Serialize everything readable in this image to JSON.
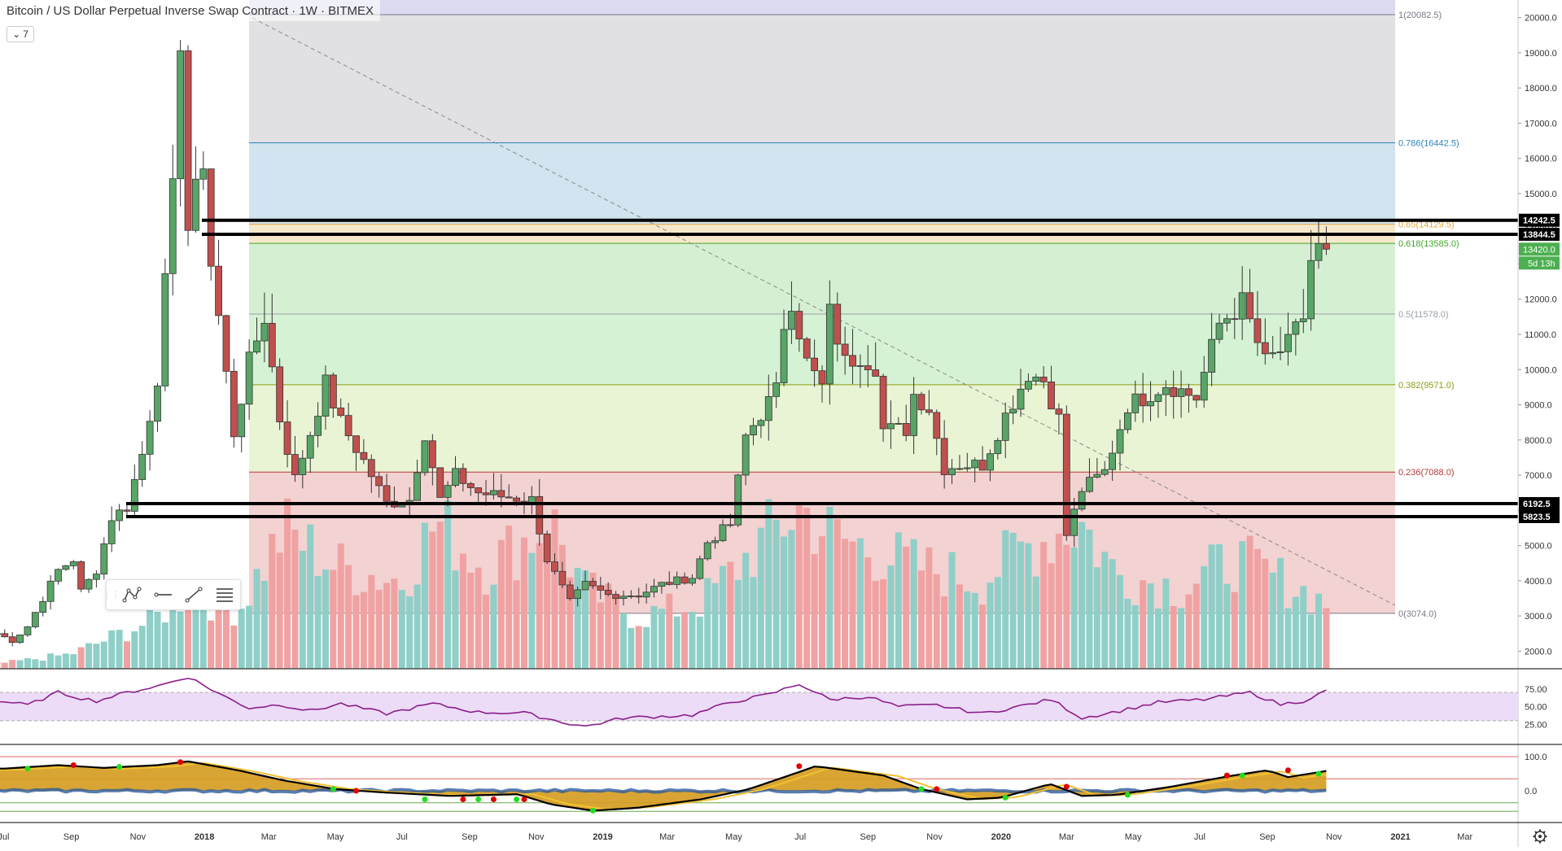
{
  "header": {
    "title": "Bitcoin / US Dollar Perpetual Inverse Swap Contract · 1W · BITMEX",
    "indicator_count": "7"
  },
  "chart_data": {
    "type": "candlestick",
    "title": "Bitcoin / US Dollar Perpetual Inverse Swap Contract · 1W · BITMEX",
    "symbol": "XBTUSD",
    "timeframe": "1W",
    "exchange": "BITMEX",
    "y_range": [
      1500,
      20500
    ],
    "y_ticks": [
      "20000.0",
      "19000.0",
      "18000.0",
      "17000.0",
      "16000.0",
      "15000.0",
      "14000.0",
      "13000.0",
      "12000.0",
      "11000.0",
      "10000.0",
      "9000.0",
      "8000.0",
      "7000.0",
      "6000.0",
      "5000.0",
      "4000.0",
      "3000.0",
      "2000.0"
    ],
    "x_ticks": [
      "Jul",
      "Sep",
      "Nov",
      "2018",
      "Mar",
      "May",
      "Jul",
      "Sep",
      "Nov",
      "2019",
      "Mar",
      "May",
      "Jul",
      "Sep",
      "Nov",
      "2020",
      "Mar",
      "May",
      "Jul",
      "Sep",
      "Nov",
      "2021",
      "Mar"
    ],
    "price_path": [
      [
        "2017-07-02",
        2500
      ],
      [
        "2017-07-16",
        2300
      ],
      [
        "2017-07-30",
        2700
      ],
      [
        "2017-08-13",
        3500
      ],
      [
        "2017-08-27",
        4300
      ],
      [
        "2017-09-10",
        4600
      ],
      [
        "2017-09-17",
        3700
      ],
      [
        "2017-10-01",
        4300
      ],
      [
        "2017-10-15",
        5800
      ],
      [
        "2017-10-29",
        6100
      ],
      [
        "2017-11-12",
        7600
      ],
      [
        "2017-11-26",
        9800
      ],
      [
        "2017-12-10",
        15000
      ],
      [
        "2017-12-17",
        19500
      ],
      [
        "2017-12-24",
        14000
      ],
      [
        "2018-01-07",
        16000
      ],
      [
        "2018-01-14",
        13000
      ],
      [
        "2018-01-21",
        11500
      ],
      [
        "2018-02-04",
        8200
      ],
      [
        "2018-02-18",
        10200
      ],
      [
        "2018-03-04",
        11500
      ],
      [
        "2018-03-18",
        8600
      ],
      [
        "2018-04-01",
        6900
      ],
      [
        "2018-04-15",
        8200
      ],
      [
        "2018-04-29",
        9600
      ],
      [
        "2018-05-13",
        8500
      ],
      [
        "2018-06-03",
        7400
      ],
      [
        "2018-06-24",
        6200
      ],
      [
        "2018-07-15",
        6300
      ],
      [
        "2018-07-29",
        8200
      ],
      [
        "2018-08-12",
        6300
      ],
      [
        "2018-08-26",
        7000
      ],
      [
        "2018-09-16",
        6500
      ],
      [
        "2018-10-07",
        6400
      ],
      [
        "2018-11-04",
        6300
      ],
      [
        "2018-11-18",
        4600
      ],
      [
        "2018-12-09",
        3400
      ],
      [
        "2018-12-23",
        3900
      ],
      [
        "2019-01-13",
        3600
      ],
      [
        "2019-02-10",
        3600
      ],
      [
        "2019-03-03",
        3900
      ],
      [
        "2019-03-31",
        4100
      ],
      [
        "2019-04-14",
        5100
      ],
      [
        "2019-05-05",
        5600
      ],
      [
        "2019-05-19",
        8100
      ],
      [
        "2019-06-16",
        9400
      ],
      [
        "2019-06-23",
        11300
      ],
      [
        "2019-06-30",
        12000
      ],
      [
        "2019-07-14",
        10200
      ],
      [
        "2019-07-28",
        9500
      ],
      [
        "2019-08-04",
        11600
      ],
      [
        "2019-08-18",
        10200
      ],
      [
        "2019-09-01",
        10400
      ],
      [
        "2019-09-15",
        10100
      ],
      [
        "2019-09-22",
        8300
      ],
      [
        "2019-10-13",
        8300
      ],
      [
        "2019-10-20",
        9300
      ],
      [
        "2019-11-03",
        8900
      ],
      [
        "2019-11-17",
        7200
      ],
      [
        "2019-12-01",
        7300
      ],
      [
        "2019-12-22",
        7300
      ],
      [
        "2020-01-12",
        8700
      ],
      [
        "2020-02-02",
        9900
      ],
      [
        "2020-02-16",
        9700
      ],
      [
        "2020-03-01",
        8600
      ],
      [
        "2020-03-08",
        5300
      ],
      [
        "2020-03-22",
        6600
      ],
      [
        "2020-04-12",
        7100
      ],
      [
        "2020-05-03",
        9000
      ],
      [
        "2020-05-17",
        9200
      ],
      [
        "2020-06-07",
        9600
      ],
      [
        "2020-07-05",
        9200
      ],
      [
        "2020-07-26",
        11300
      ],
      [
        "2020-08-16",
        11900
      ],
      [
        "2020-09-06",
        10200
      ],
      [
        "2020-09-27",
        10700
      ],
      [
        "2020-10-11",
        11500
      ],
      [
        "2020-10-18",
        13100
      ],
      [
        "2020-10-25",
        13420
      ]
    ],
    "volume_path": [
      [
        "2017-07-02",
        0.04
      ],
      [
        "2017-09-01",
        0.1
      ],
      [
        "2017-11-15",
        0.33
      ],
      [
        "2017-12-15",
        0.52
      ],
      [
        "2018-02-01",
        0.4
      ],
      [
        "2018-03-15",
        0.95
      ],
      [
        "2018-05-01",
        0.7
      ],
      [
        "2018-07-01",
        0.6
      ],
      [
        "2018-08-01",
        1.0
      ],
      [
        "2018-09-15",
        0.7
      ],
      [
        "2018-11-15",
        1.0
      ],
      [
        "2018-12-15",
        0.55
      ],
      [
        "2019-02-01",
        0.35
      ],
      [
        "2019-04-01",
        0.45
      ],
      [
        "2019-06-01",
        0.9
      ],
      [
        "2019-06-30",
        1.1
      ],
      [
        "2019-08-01",
        0.9
      ],
      [
        "2019-10-15",
        0.7
      ],
      [
        "2019-12-15",
        0.6
      ],
      [
        "2020-01-15",
        0.8
      ],
      [
        "2020-03-14",
        1.0
      ],
      [
        "2020-04-15",
        0.65
      ],
      [
        "2020-06-15",
        0.55
      ],
      [
        "2020-08-01",
        0.75
      ],
      [
        "2020-09-15",
        0.6
      ],
      [
        "2020-10-25",
        0.45
      ]
    ],
    "rsi_path": [
      [
        "2017-07-02",
        57
      ],
      [
        "2017-07-23",
        52
      ],
      [
        "2017-08-20",
        70
      ],
      [
        "2017-09-10",
        62
      ],
      [
        "2017-09-24",
        58
      ],
      [
        "2017-10-22",
        70
      ],
      [
        "2017-11-19",
        79
      ],
      [
        "2017-12-17",
        92
      ],
      [
        "2018-01-21",
        63
      ],
      [
        "2018-02-11",
        48
      ],
      [
        "2018-03-11",
        53
      ],
      [
        "2018-04-08",
        44
      ],
      [
        "2018-05-06",
        54
      ],
      [
        "2018-06-17",
        40
      ],
      [
        "2018-07-29",
        54
      ],
      [
        "2018-09-09",
        42
      ],
      [
        "2018-10-21",
        41
      ],
      [
        "2018-11-25",
        28
      ],
      [
        "2018-12-16",
        22
      ],
      [
        "2019-01-20",
        34
      ],
      [
        "2019-03-24",
        38
      ],
      [
        "2019-04-28",
        56
      ],
      [
        "2019-06-02",
        67
      ],
      [
        "2019-06-30",
        82
      ],
      [
        "2019-07-28",
        60
      ],
      [
        "2019-09-01",
        64
      ],
      [
        "2019-09-29",
        50
      ],
      [
        "2019-11-03",
        52
      ],
      [
        "2019-12-15",
        40
      ],
      [
        "2020-01-26",
        53
      ],
      [
        "2020-02-16",
        60
      ],
      [
        "2020-03-15",
        34
      ],
      [
        "2020-04-19",
        44
      ],
      [
        "2020-05-24",
        56
      ],
      [
        "2020-07-05",
        60
      ],
      [
        "2020-08-16",
        70
      ],
      [
        "2020-09-13",
        53
      ],
      [
        "2020-10-04",
        58
      ],
      [
        "2020-10-25",
        72
      ]
    ],
    "rsi_levels": [
      70,
      30
    ],
    "rsi_ticks": [
      "75.00",
      "50.00",
      "25.00"
    ],
    "osc_path": [
      [
        "2017-07-02",
        65
      ],
      [
        "2017-08-20",
        75
      ],
      [
        "2017-10-01",
        67
      ],
      [
        "2017-11-19",
        75
      ],
      [
        "2017-12-17",
        86
      ],
      [
        "2018-02-01",
        60
      ],
      [
        "2018-03-15",
        30
      ],
      [
        "2018-05-01",
        5
      ],
      [
        "2018-06-15",
        -5
      ],
      [
        "2018-08-15",
        -15
      ],
      [
        "2018-10-15",
        -10
      ],
      [
        "2018-11-15",
        -40
      ],
      [
        "2018-12-23",
        -58
      ],
      [
        "2019-02-01",
        -50
      ],
      [
        "2019-04-01",
        -25
      ],
      [
        "2019-05-15",
        5
      ],
      [
        "2019-06-30",
        55
      ],
      [
        "2019-07-15",
        72
      ],
      [
        "2019-09-15",
        45
      ],
      [
        "2019-10-20",
        5
      ],
      [
        "2019-12-01",
        -25
      ],
      [
        "2020-01-01",
        -20
      ],
      [
        "2020-02-15",
        20
      ],
      [
        "2020-03-15",
        -15
      ],
      [
        "2020-04-15",
        -12
      ],
      [
        "2020-06-01",
        10
      ],
      [
        "2020-08-01",
        45
      ],
      [
        "2020-09-01",
        60
      ],
      [
        "2020-09-20",
        40
      ],
      [
        "2020-10-25",
        58
      ]
    ],
    "osc_ticks": [
      "100.0",
      "0.0"
    ],
    "osc_markers": [
      [
        "2017-07-23",
        "green",
        65
      ],
      [
        "2017-09-03",
        "red",
        75
      ],
      [
        "2017-10-15",
        "green",
        70
      ],
      [
        "2017-12-10",
        "red",
        84
      ],
      [
        "2018-04-29",
        "green",
        5
      ],
      [
        "2018-05-20",
        "red",
        0
      ],
      [
        "2018-07-22",
        "green",
        -25
      ],
      [
        "2018-08-26",
        "red",
        -25
      ],
      [
        "2018-09-09",
        "green",
        -25
      ],
      [
        "2018-09-23",
        "red",
        -25
      ],
      [
        "2018-10-14",
        "green",
        -25
      ],
      [
        "2018-10-21",
        "red",
        -25
      ],
      [
        "2018-12-23",
        "green",
        -58
      ],
      [
        "2019-06-30",
        "red",
        72
      ],
      [
        "2019-10-20",
        "green",
        5
      ],
      [
        "2019-11-03",
        "red",
        5
      ],
      [
        "2020-01-05",
        "green",
        -20
      ],
      [
        "2020-03-01",
        "red",
        12
      ],
      [
        "2020-04-26",
        "green",
        -12
      ],
      [
        "2020-07-26",
        "red",
        45
      ],
      [
        "2020-08-09",
        "green",
        45
      ],
      [
        "2020-09-20",
        "red",
        60
      ],
      [
        "2020-10-18",
        "green",
        50
      ]
    ],
    "fib_levels": [
      {
        "ratio": "1",
        "price": 20082.5,
        "label": "1(20082.5)",
        "color": "#787b86",
        "fill": "#e1e1e4"
      },
      {
        "ratio": "0.786",
        "price": 16442.5,
        "label": "0.786(16442.5)",
        "color": "#2e84b8",
        "fill": "#d1e4ef"
      },
      {
        "ratio": "0.65",
        "price": 14129.5,
        "label": "0.65(14129.5)",
        "color": "#e1a63e",
        "fill": "#f5e8cb"
      },
      {
        "ratio": "0.618",
        "price": 13585.0,
        "label": "0.618(13585.0)",
        "color": "#42a62a",
        "fill": "#d5efd2"
      },
      {
        "ratio": "0.5",
        "price": 11578.0,
        "label": "0.5(11578.0)",
        "color": "#9aa0a6",
        "fill": "#d6f2d4"
      },
      {
        "ratio": "0.382",
        "price": 9571.0,
        "label": "0.382(9571.0)",
        "color": "#8f9b10",
        "fill": "#e9f4d5"
      },
      {
        "ratio": "0.236",
        "price": 7088.0,
        "label": "0.236(7088.0)",
        "color": "#b23a3a",
        "fill": "#f3d2d2"
      },
      {
        "ratio": "0",
        "price": 3074.0,
        "label": "0(3074.0)",
        "color": "#787b86",
        "fill": "#f3d2d2"
      }
    ],
    "horizontal_lines": [
      {
        "price": 14242.5,
        "label": "14242.5"
      },
      {
        "price": 13844.5,
        "label": "13844.5"
      },
      {
        "price": 6192.5,
        "label": "6192.5"
      },
      {
        "price": 5823.5,
        "label": "5823.5"
      }
    ],
    "current_price": {
      "price": 13420.0,
      "label": "13420.0",
      "countdown": "5d 13h"
    },
    "colors": {
      "up": "#58a567",
      "down": "#c0504d",
      "volume_up": "#8fcfc8",
      "volume_down": "#f0a2a2",
      "rsi": "#8b1f8b",
      "rsi_band": "#ecdcf7",
      "osc_fill": "#d49b1e",
      "osc_blue": "#2e5b9c",
      "price_tag": "#4caf50"
    }
  }
}
